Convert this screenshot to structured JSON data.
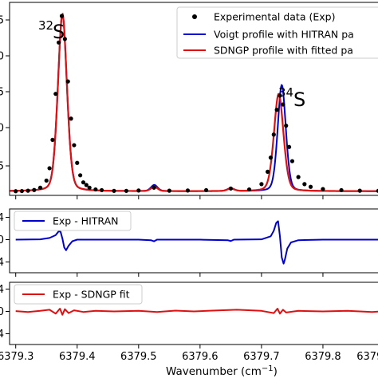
{
  "chart_data": [
    {
      "type": "line",
      "panel": "main",
      "xlim": [
        6379.29,
        6379.9
      ],
      "ylim": [
        0,
        1
      ],
      "ytick_labels": [
        ".5",
        ".0",
        ".5",
        ".0",
        ".5"
      ],
      "legend": {
        "placement": "top-right",
        "entries": [
          {
            "label": "Experimental data (Exp)",
            "marker": "dot",
            "color": "#000000"
          },
          {
            "label": "Voigt profile with HITRAN pa",
            "color": "#0000cc"
          },
          {
            "label": "SDNGP profile with fitted pa",
            "color": "#dd1111"
          }
        ]
      },
      "annotations": [
        {
          "mass": "32",
          "element": "S",
          "x": 6379.3455,
          "y": 0.9
        },
        {
          "mass": "34",
          "element": "S",
          "x": 6379.7035,
          "y": 0.535
        }
      ],
      "series": [
        {
          "name": "Experimental data (Exp)",
          "style": "markers",
          "color": "#000000",
          "x": [
            6379.3,
            6379.31,
            6379.32,
            6379.33,
            6379.34,
            6379.35,
            6379.355,
            6379.36,
            6379.365,
            6379.37,
            6379.375,
            6379.38,
            6379.385,
            6379.39,
            6379.395,
            6379.4,
            6379.405,
            6379.41,
            6379.415,
            6379.42,
            6379.43,
            6379.44,
            6379.46,
            6379.48,
            6379.5,
            6379.525,
            6379.55,
            6379.58,
            6379.61,
            6379.65,
            6379.68,
            6379.7,
            6379.71,
            6379.715,
            6379.72,
            6379.725,
            6379.73,
            6379.735,
            6379.74,
            6379.745,
            6379.75,
            6379.76,
            6379.77,
            6379.78,
            6379.8,
            6379.83,
            6379.86,
            6379.89
          ],
          "y": [
            0.01,
            0.011,
            0.013,
            0.017,
            0.03,
            0.07,
            0.14,
            0.3,
            0.56,
            0.85,
            1.0,
            0.87,
            0.63,
            0.42,
            0.27,
            0.17,
            0.1,
            0.06,
            0.045,
            0.03,
            0.02,
            0.016,
            0.012,
            0.012,
            0.014,
            0.03,
            0.013,
            0.014,
            0.016,
            0.025,
            0.02,
            0.05,
            0.12,
            0.2,
            0.33,
            0.47,
            0.55,
            0.5,
            0.38,
            0.26,
            0.18,
            0.09,
            0.05,
            0.035,
            0.022,
            0.016,
            0.013,
            0.012
          ]
        },
        {
          "name": "Voigt profile with HITRAN pa",
          "style": "line",
          "color": "#0000cc",
          "peaks": [
            {
              "x0": 6379.376,
              "amplitude": 1.0,
              "width": 0.0076
            },
            {
              "x0": 6379.5255,
              "amplitude": 0.035,
              "width": 0.0055
            },
            {
              "x0": 6379.65,
              "amplitude": 0.016,
              "width": 0.006
            },
            {
              "x0": 6379.733,
              "amplitude": 0.6,
              "width": 0.0068
            }
          ],
          "baseline": 0.01
        },
        {
          "name": "SDNGP profile with fitted pa",
          "style": "line",
          "color": "#dd1111",
          "peaks": [
            {
              "x0": 6379.376,
              "amplitude": 1.0,
              "width": 0.0076
            },
            {
              "x0": 6379.5255,
              "amplitude": 0.025,
              "width": 0.0055
            },
            {
              "x0": 6379.65,
              "amplitude": 0.013,
              "width": 0.006
            },
            {
              "x0": 6379.728,
              "amplitude": 0.55,
              "width": 0.008
            }
          ],
          "baseline": 0.01
        }
      ]
    },
    {
      "type": "line",
      "panel": "residual-hitran",
      "xlim": [
        6379.29,
        6379.9
      ],
      "ylim": [
        -5,
        5
      ],
      "ytick_labels": [
        "4",
        "0",
        "4"
      ],
      "legend": {
        "placement": "top-left",
        "entries": [
          {
            "label": "Exp - HITRAN",
            "color": "#0000cc"
          }
        ]
      },
      "series": [
        {
          "name": "Exp - HITRAN",
          "color": "#0000cc",
          "x": [
            6379.3,
            6379.34,
            6379.355,
            6379.365,
            6379.37,
            6379.373,
            6379.376,
            6379.379,
            6379.382,
            6379.386,
            6379.392,
            6379.4,
            6379.45,
            6379.5,
            6379.52,
            6379.525,
            6379.53,
            6379.55,
            6379.6,
            6379.645,
            6379.65,
            6379.655,
            6379.7,
            6379.715,
            6379.72,
            6379.724,
            6379.727,
            6379.73,
            6379.733,
            6379.736,
            6379.738,
            6379.742,
            6379.748,
            6379.76,
            6379.8,
            6379.9
          ],
          "y": [
            0.0,
            0.05,
            0.3,
            0.8,
            1.5,
            1.4,
            0.2,
            -1.4,
            -1.9,
            -1.1,
            -0.3,
            0.0,
            0.0,
            0.0,
            -0.1,
            -0.3,
            0.0,
            0.0,
            0.0,
            -0.1,
            -0.25,
            0.0,
            0.05,
            0.6,
            1.6,
            3.0,
            3.3,
            0.6,
            -3.2,
            -4.3,
            -3.6,
            -1.6,
            -0.5,
            -0.1,
            0.0,
            0.0
          ]
        }
      ]
    },
    {
      "type": "line",
      "panel": "residual-sdngp",
      "xlim": [
        6379.29,
        6379.9
      ],
      "ylim": [
        -5,
        5
      ],
      "ytick_labels": [
        "4",
        "0",
        "4"
      ],
      "xtick_labels": [
        "6379.3",
        "6379.4",
        "6379.5",
        "6379.6",
        "6379.7",
        "6379.8",
        "6379.9"
      ],
      "xtick_values": [
        6379.3,
        6379.4,
        6379.5,
        6379.6,
        6379.7,
        6379.8,
        6379.9
      ],
      "xlabel": "Wavenumber (cm",
      "xlabel_sup": "−1",
      "xlabel_end": ")",
      "legend": {
        "placement": "top-left",
        "entries": [
          {
            "label": "Exp - SDNGP fit",
            "color": "#dd1111"
          }
        ]
      },
      "series": [
        {
          "name": "Exp - SDNGP fit",
          "color": "#dd1111",
          "x": [
            6379.3,
            6379.32,
            6379.34,
            6379.355,
            6379.365,
            6379.372,
            6379.376,
            6379.38,
            6379.386,
            6379.395,
            6379.41,
            6379.43,
            6379.46,
            6379.5,
            6379.53,
            6379.56,
            6379.59,
            6379.62,
            6379.66,
            6379.7,
            6379.72,
            6379.726,
            6379.73,
            6379.735,
            6379.74,
            6379.76,
            6379.8,
            6379.84,
            6379.88,
            6379.9
          ],
          "y": [
            0.05,
            -0.1,
            0.1,
            0.3,
            -0.4,
            0.5,
            -0.6,
            0.4,
            -0.3,
            0.2,
            -0.1,
            0.1,
            0.0,
            0.1,
            -0.1,
            0.15,
            0.0,
            0.15,
            0.3,
            0.1,
            -0.3,
            0.5,
            -0.4,
            0.3,
            -0.2,
            0.1,
            0.0,
            0.1,
            -0.1,
            0.05
          ]
        }
      ]
    }
  ]
}
